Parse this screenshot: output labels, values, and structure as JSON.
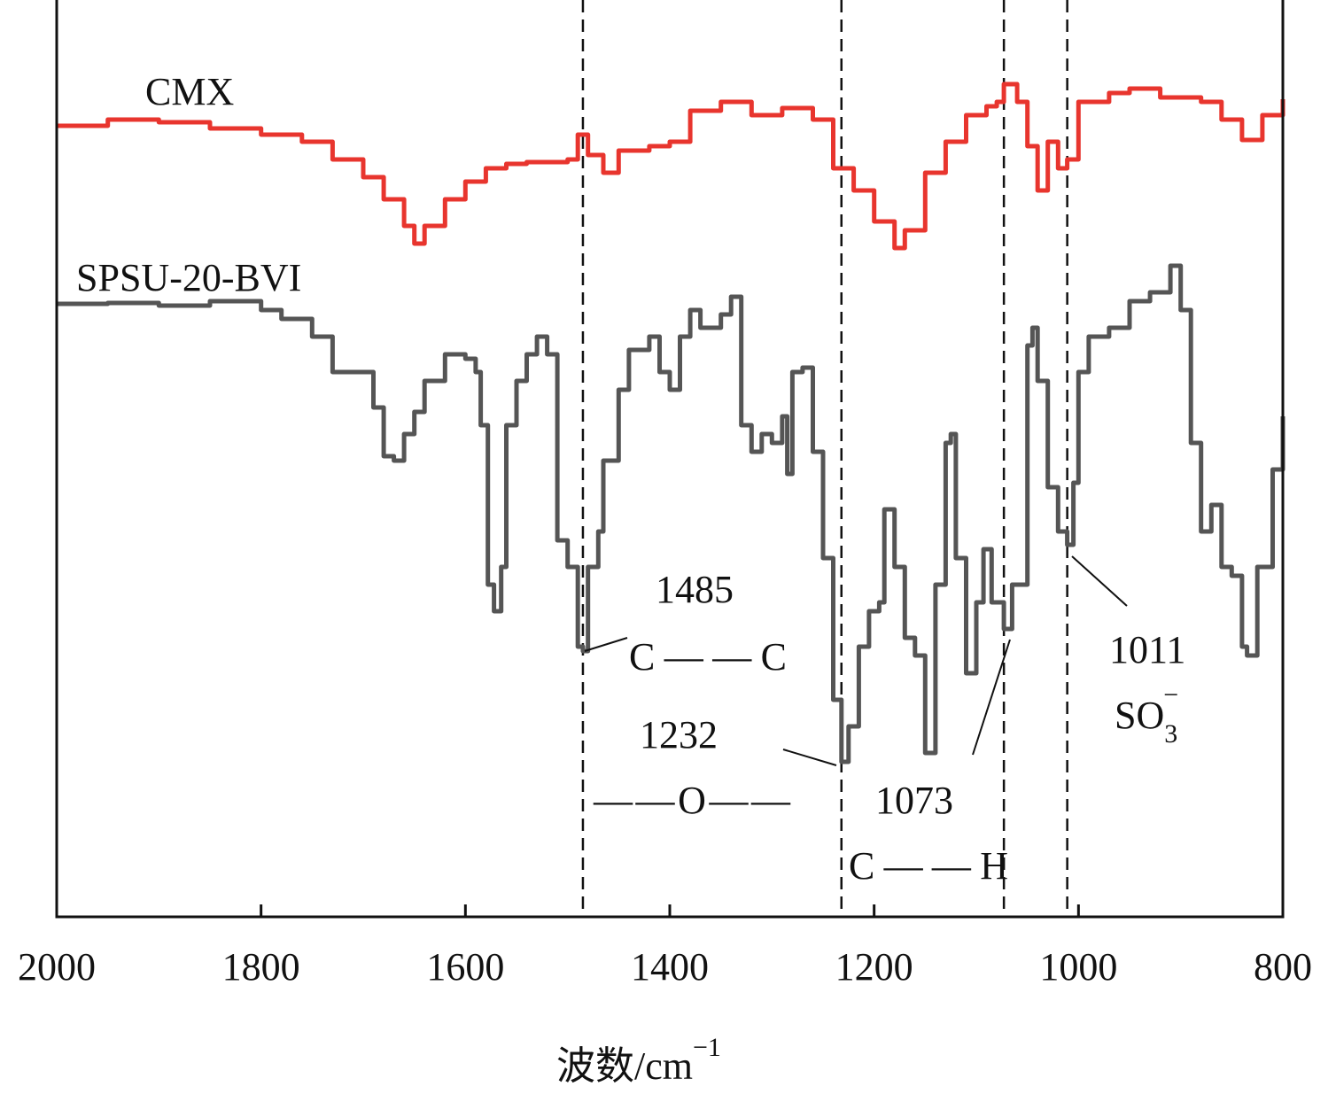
{
  "chart_data": {
    "type": "line",
    "title": "",
    "xlabel": "波数/cm",
    "xlabel_sup": "−1",
    "ylabel": "",
    "xlim": [
      2000,
      800
    ],
    "ylim": [
      0,
      103.5
    ],
    "y_units": "transmittance (a.u.)",
    "grid": false,
    "x_ticks": [
      2000,
      1800,
      1600,
      1400,
      1200,
      1000,
      800
    ],
    "x_tick_labels": [
      "2000",
      "1800",
      "1600",
      "1400",
      "1200",
      "1000",
      "800"
    ],
    "series": [
      {
        "name": "CMX",
        "color": "#e8352e",
        "x": [
          2000,
          1950,
          1900,
          1850,
          1800,
          1760,
          1730,
          1700,
          1680,
          1660,
          1650,
          1640,
          1620,
          1600,
          1580,
          1560,
          1540,
          1500,
          1490,
          1480,
          1465,
          1450,
          1420,
          1400,
          1380,
          1350,
          1320,
          1290,
          1260,
          1240,
          1220,
          1200,
          1180,
          1170,
          1150,
          1130,
          1110,
          1090,
          1080,
          1073,
          1060,
          1050,
          1040,
          1030,
          1020,
          1011,
          1000,
          970,
          950,
          920,
          880,
          860,
          840,
          820,
          800
        ],
        "y": [
          89.3,
          90,
          89.7,
          89,
          88.3,
          87.5,
          85.5,
          83.5,
          81,
          78,
          76,
          78,
          81,
          83,
          84.5,
          85,
          85.2,
          85.5,
          88.3,
          86,
          84,
          86.5,
          87,
          87.5,
          91,
          92,
          90.5,
          91.3,
          90,
          84.5,
          82,
          78.5,
          75.5,
          77.5,
          84,
          87.5,
          90.5,
          91.5,
          92,
          94,
          92,
          87,
          82,
          87.5,
          84.5,
          85.5,
          92,
          93,
          93.5,
          92.5,
          92,
          90,
          87.7,
          90.5,
          92.3
        ]
      },
      {
        "name": "SPSU-20-BVI",
        "color": "#555555",
        "x": [
          2000,
          1950,
          1900,
          1850,
          1800,
          1780,
          1750,
          1730,
          1710,
          1690,
          1680,
          1670,
          1660,
          1650,
          1640,
          1620,
          1600,
          1590,
          1585,
          1578,
          1572,
          1565,
          1560,
          1550,
          1540,
          1530,
          1520,
          1510,
          1500,
          1490,
          1485,
          1480,
          1470,
          1465,
          1450,
          1440,
          1420,
          1410,
          1400,
          1390,
          1380,
          1370,
          1350,
          1340,
          1330,
          1320,
          1310,
          1300,
          1290,
          1285,
          1280,
          1270,
          1260,
          1250,
          1240,
          1232,
          1225,
          1215,
          1205,
          1195,
          1190,
          1180,
          1170,
          1160,
          1150,
          1140,
          1130,
          1125,
          1120,
          1110,
          1100,
          1093,
          1085,
          1073,
          1065,
          1050,
          1045,
          1040,
          1030,
          1020,
          1011,
          1005,
          1000,
          990,
          970,
          950,
          930,
          910,
          900,
          890,
          880,
          870,
          860,
          850,
          840,
          835,
          825,
          810,
          800
        ],
        "y": [
          69.2,
          69.3,
          69,
          69.5,
          68.5,
          67.5,
          65.5,
          61.5,
          61.5,
          57.5,
          52,
          51.5,
          54.5,
          57,
          60.5,
          63.5,
          63,
          61.5,
          55.5,
          37.5,
          34.5,
          39.5,
          55.5,
          60.5,
          63.5,
          65.5,
          63.5,
          42.5,
          39.5,
          30.5,
          30,
          39.5,
          43.5,
          51.5,
          59.5,
          64,
          65.5,
          61.5,
          59.5,
          65.5,
          68.5,
          66.5,
          68,
          70,
          55.5,
          52.5,
          54.5,
          53.5,
          56.5,
          50,
          61.5,
          62,
          52.5,
          40.5,
          24.5,
          17.5,
          21.5,
          30.5,
          34.5,
          35.5,
          46,
          39.5,
          31.5,
          29.5,
          18.5,
          37.5,
          53.5,
          54.5,
          40.5,
          27.5,
          35.5,
          41.5,
          35.5,
          32.5,
          37.5,
          64.5,
          66.5,
          60.5,
          48.5,
          43.5,
          42,
          49,
          61.5,
          65.5,
          66.5,
          69.5,
          70.5,
          73.5,
          68.5,
          53.5,
          43.5,
          46.5,
          39.5,
          38.5,
          30.5,
          29.5,
          39.5,
          50.5,
          56.5
        ]
      }
    ],
    "reference_lines": [
      1485,
      1232,
      1073,
      1011
    ],
    "annotations": {
      "a1485": {
        "wavenumber": "1485",
        "group": "C——C"
      },
      "a1232": {
        "wavenumber": "1232",
        "group": "——O——"
      },
      "a1073": {
        "wavenumber": "1073",
        "group": "C——H"
      },
      "a1011": {
        "wavenumber": "1011",
        "group": "SO",
        "sub": "3",
        "sup": "−"
      }
    }
  }
}
